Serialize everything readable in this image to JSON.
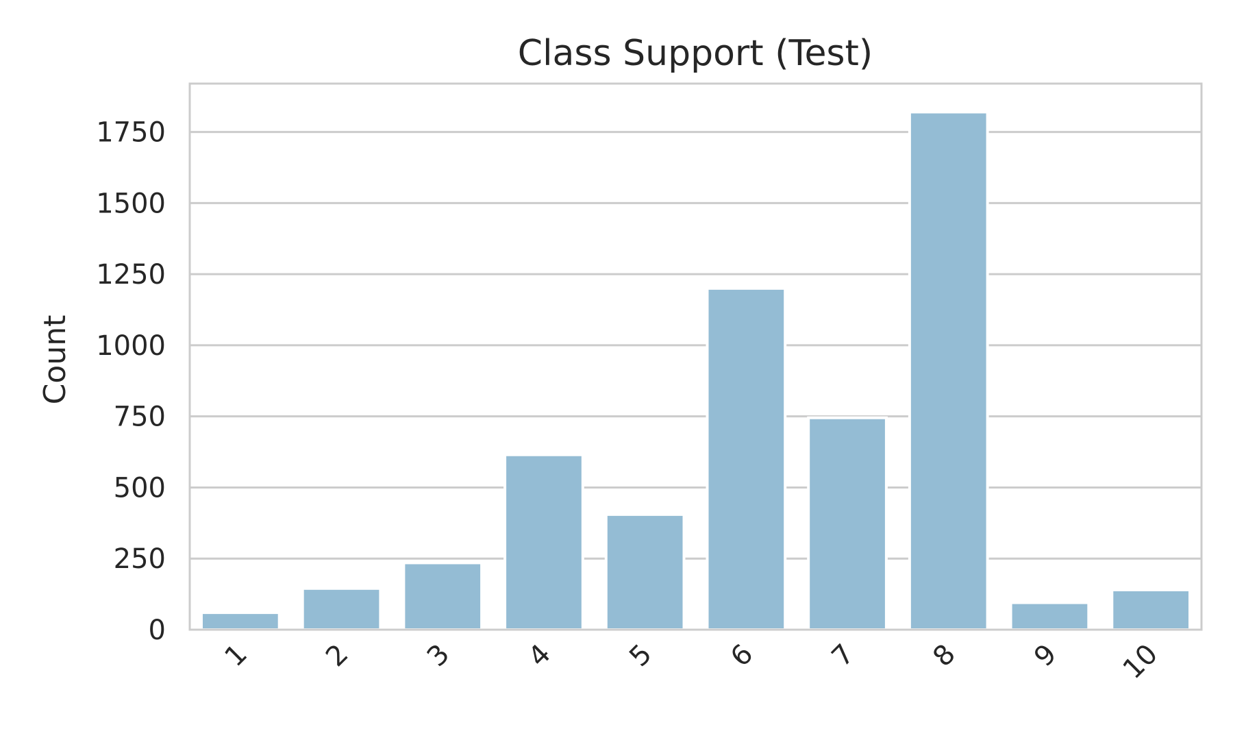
{
  "chart_data": {
    "type": "bar",
    "title": "Class Support (Test)",
    "xlabel": "",
    "ylabel": "Count",
    "categories": [
      "1",
      "2",
      "3",
      "4",
      "5",
      "6",
      "7",
      "8",
      "9",
      "10"
    ],
    "values": [
      60,
      145,
      235,
      615,
      405,
      1200,
      745,
      1820,
      95,
      140
    ],
    "ylim": [
      0,
      1920
    ],
    "yticks": [
      0,
      250,
      500,
      750,
      1000,
      1250,
      1500,
      1750
    ],
    "grid": true,
    "bar_color": "#94bcd4",
    "grid_color": "#cccccc",
    "axis_color": "#cccccc"
  }
}
